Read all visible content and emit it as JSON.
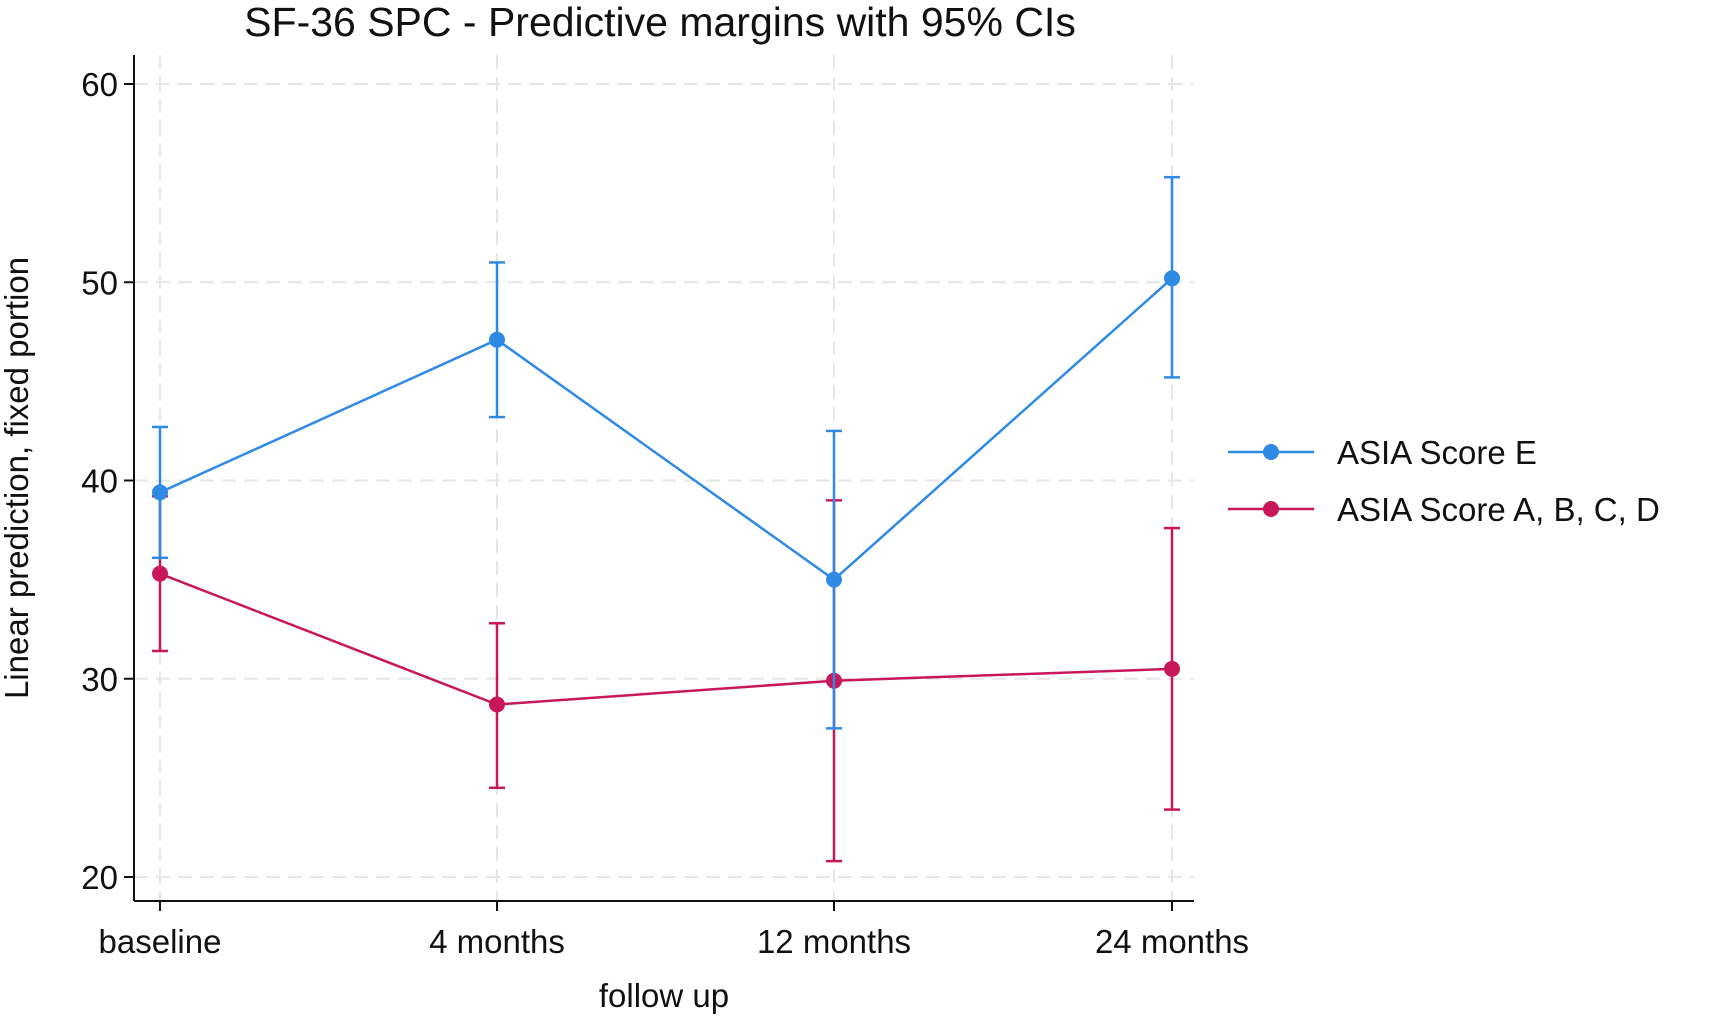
{
  "chart_data": {
    "type": "line",
    "title": "SF-36 SPC - Predictive margins with 95% CIs",
    "xlabel": "follow up",
    "ylabel": "Linear prediction, fixed portion",
    "categories": [
      "baseline",
      "4 months",
      "12 months",
      "24 months"
    ],
    "yticks": [
      "20",
      "30",
      "40",
      "50",
      "60"
    ],
    "ylim": [
      19,
      61
    ],
    "grid": true,
    "legend_position": "right",
    "series": [
      {
        "name": "ASIA Score E",
        "color": "#2f8ae6",
        "values": [
          39.4,
          47.1,
          35.0,
          50.2
        ],
        "ci_lower": [
          36.1,
          43.2,
          27.5,
          45.2
        ],
        "ci_upper": [
          42.7,
          51.0,
          42.5,
          55.3
        ]
      },
      {
        "name": "ASIA Score A, B, C, D",
        "color": "#c8185a",
        "values": [
          35.3,
          28.7,
          29.9,
          30.5
        ],
        "ci_lower": [
          31.4,
          24.5,
          20.8,
          23.4
        ],
        "ci_upper": [
          39.2,
          32.8,
          39.0,
          37.6
        ]
      }
    ]
  }
}
